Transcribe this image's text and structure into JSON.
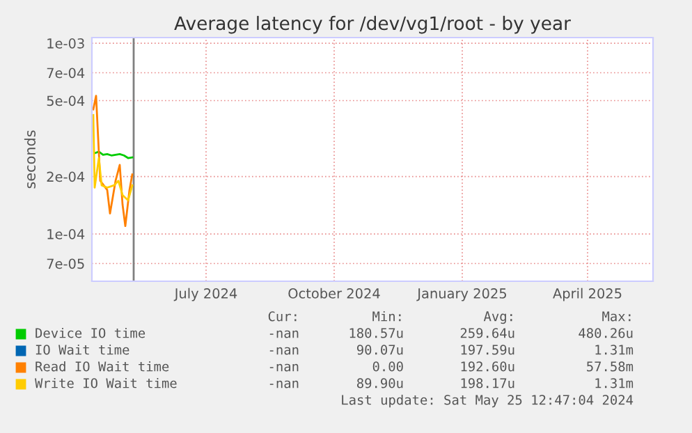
{
  "chart_data": {
    "type": "line",
    "title": "Average latency for /dev/vg1/root - by year",
    "ylabel": "seconds",
    "log": "y",
    "ylim": [
      5.65e-05,
      0.00107
    ],
    "yticks": [
      {
        "value": 7e-05,
        "label": "7e-05"
      },
      {
        "value": 0.0001,
        "label": "1e-04"
      },
      {
        "value": 0.0002,
        "label": "2e-04"
      },
      {
        "value": 0.0005,
        "label": "5e-04"
      },
      {
        "value": 0.0007,
        "label": "7e-04"
      },
      {
        "value": 0.001,
        "label": "1e-03"
      }
    ],
    "xlim": [
      "2024-04-10",
      "2025-05-18"
    ],
    "xticks": [
      {
        "value": "2024-07-01",
        "label": "July 2024"
      },
      {
        "value": "2024-10-01",
        "label": "October 2024"
      },
      {
        "value": "2025-01-01",
        "label": "January 2025"
      },
      {
        "value": "2025-04-01",
        "label": "April 2025"
      }
    ],
    "grid": true,
    "legend": "bottom",
    "ref_lines": [
      {
        "axis": "x",
        "value": "2024-05-10",
        "color": "#808080"
      }
    ],
    "series": [
      {
        "name": "Device IO time",
        "color": "#00cc00",
        "x": [
          "2024-04-12",
          "2024-04-15",
          "2024-04-18",
          "2024-04-21",
          "2024-04-24",
          "2024-04-27",
          "2024-04-30",
          "2024-05-03",
          "2024-05-06",
          "2024-05-09"
        ],
        "values": [
          0.000265,
          0.00027,
          0.00026,
          0.000262,
          0.000258,
          0.00026,
          0.000262,
          0.000258,
          0.00025,
          0.000252
        ]
      },
      {
        "name": "IO Wait time",
        "color": "#0066b3"
      },
      {
        "name": "Read IO Wait time",
        "color": "#ff8000",
        "x": [
          "2024-04-11",
          "2024-04-13",
          "2024-04-16",
          "2024-04-21",
          "2024-04-23",
          "2024-04-27",
          "2024-04-30",
          "2024-05-02",
          "2024-05-04",
          "2024-05-07",
          "2024-05-09"
        ],
        "values": [
          0.00045,
          0.00053,
          0.00019,
          0.00017,
          0.000128,
          0.00019,
          0.00023,
          0.000143,
          0.00011,
          0.00017,
          0.000205
        ]
      },
      {
        "name": "Write IO Wait time",
        "color": "#ffcc00",
        "x": [
          "2024-04-11",
          "2024-04-12",
          "2024-04-15",
          "2024-04-17",
          "2024-04-21",
          "2024-04-26",
          "2024-04-29",
          "2024-05-02",
          "2024-05-06",
          "2024-05-09"
        ],
        "values": [
          0.00042,
          0.000175,
          0.00025,
          0.00018,
          0.000175,
          0.00018,
          0.00019,
          0.00016,
          0.00015,
          0.00018
        ]
      }
    ],
    "annotations": [
      "Cur:",
      "Min:",
      "Avg:",
      "Max:",
      "-nan",
      "180.57u",
      "259.64u",
      "480.26u",
      "-nan",
      "90.07u",
      "197.59u",
      "1.31m",
      "-nan",
      "0.00",
      "192.60u",
      "57.58m",
      "-nan",
      "89.90u",
      "198.17u",
      "1.31m",
      "Last update: Sat May 25 12:47:04 2024"
    ]
  }
}
